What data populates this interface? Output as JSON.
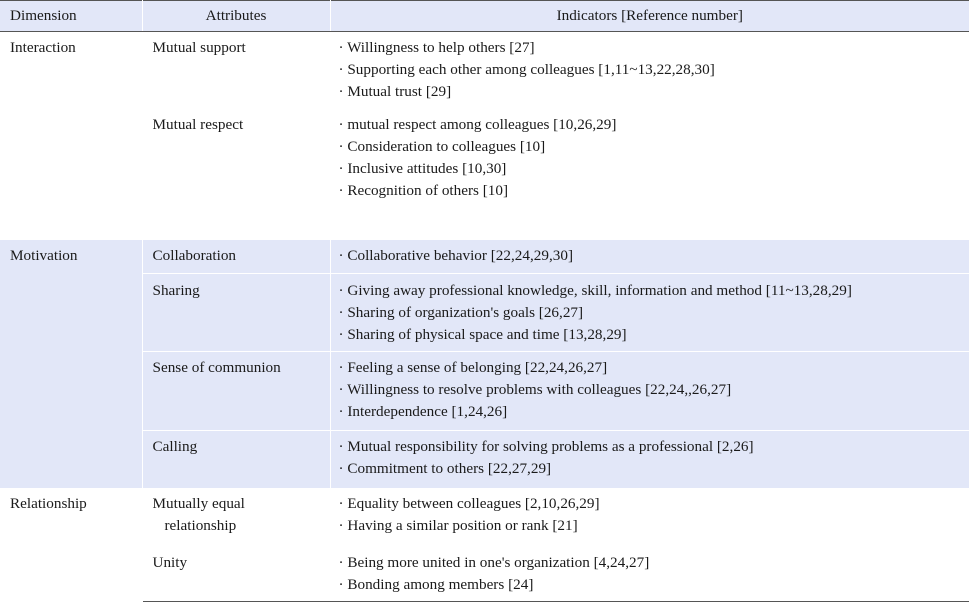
{
  "headers": {
    "dimension": "Dimension",
    "attributes": "Attributes",
    "indicators": "Indicators [Reference number]"
  },
  "rows": {
    "r0": {
      "dimension": "Interaction",
      "attribute": "Mutual support",
      "ind": [
        "· Willingness to help others [27]",
        "· Supporting each other among colleagues [1,11~13,22,28,30]",
        "· Mutual trust [29]"
      ]
    },
    "r1": {
      "attribute": "Mutual respect",
      "ind": [
        "· mutual respect among colleagues [10,26,29]",
        "· Consideration to colleagues [10]",
        "· Inclusive attitudes [10,30]",
        "· Recognition of others [10]"
      ]
    },
    "r2": {
      "dimension": "Motivation",
      "attribute": "Collaboration",
      "ind": [
        "· Collaborative behavior [22,24,29,30]"
      ]
    },
    "r3": {
      "attribute": "Sharing",
      "ind": [
        "· Giving away professional knowledge, skill, information and method [11~13,28,29]",
        "· Sharing of organization's goals [26,27]",
        "· Sharing of physical space and time [13,28,29]"
      ]
    },
    "r4": {
      "attribute": "Sense of communion",
      "ind": [
        "· Feeling a sense of belonging [22,24,26,27]",
        "· Willingness to resolve problems with colleagues [22,24,,26,27]",
        "· Interdependence [1,24,26]"
      ]
    },
    "r5": {
      "attribute": "Calling",
      "ind": [
        "· Mutual responsibility for solving problems as a professional [2,26]",
        "· Commitment to others [22,27,29]"
      ]
    },
    "r6": {
      "dimension": "Relationship",
      "attribute_lines": [
        "Mutually equal",
        "relationship"
      ],
      "ind": [
        "· Equality between colleagues [2,10,26,29]",
        "· Having a similar position or rank [21]"
      ]
    },
    "r7": {
      "attribute": "Unity",
      "ind": [
        "· Being more united in one's organization [4,24,27]",
        "· Bonding among members [24]"
      ]
    }
  }
}
